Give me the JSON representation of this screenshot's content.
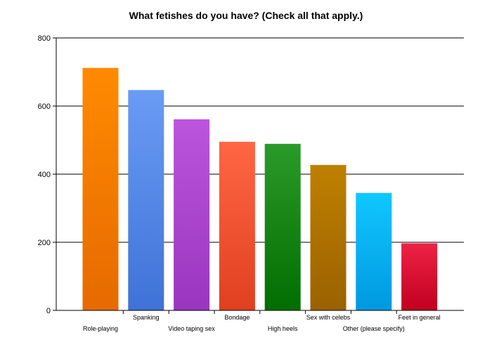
{
  "chart_data": {
    "type": "bar",
    "title": "What fetishes do you have? (Check all that apply.)",
    "xlabel": "",
    "ylabel": "",
    "ylim": [
      0,
      800
    ],
    "yticks": [
      0,
      200,
      400,
      600,
      800
    ],
    "grid": true,
    "legend": "none",
    "categories": [
      "Role-playing",
      "Spanking",
      "Video taping sex",
      "Bondage",
      "High heels",
      "Sex with celebs",
      "Other (please specify)",
      "Feet in general"
    ],
    "values": [
      712,
      647,
      561,
      495,
      489,
      427,
      345,
      197
    ],
    "colors": [
      [
        "#ff8a00",
        "#e66a00"
      ],
      [
        "#6a9cf5",
        "#3f72d6"
      ],
      [
        "#bb55dd",
        "#9a35bf"
      ],
      [
        "#ff6644",
        "#e04020"
      ],
      [
        "#2a9a2a",
        "#006e00"
      ],
      [
        "#bf8000",
        "#9a6200"
      ],
      [
        "#10c8ff",
        "#0098e0"
      ],
      [
        "#ee2244",
        "#c00020"
      ]
    ]
  }
}
